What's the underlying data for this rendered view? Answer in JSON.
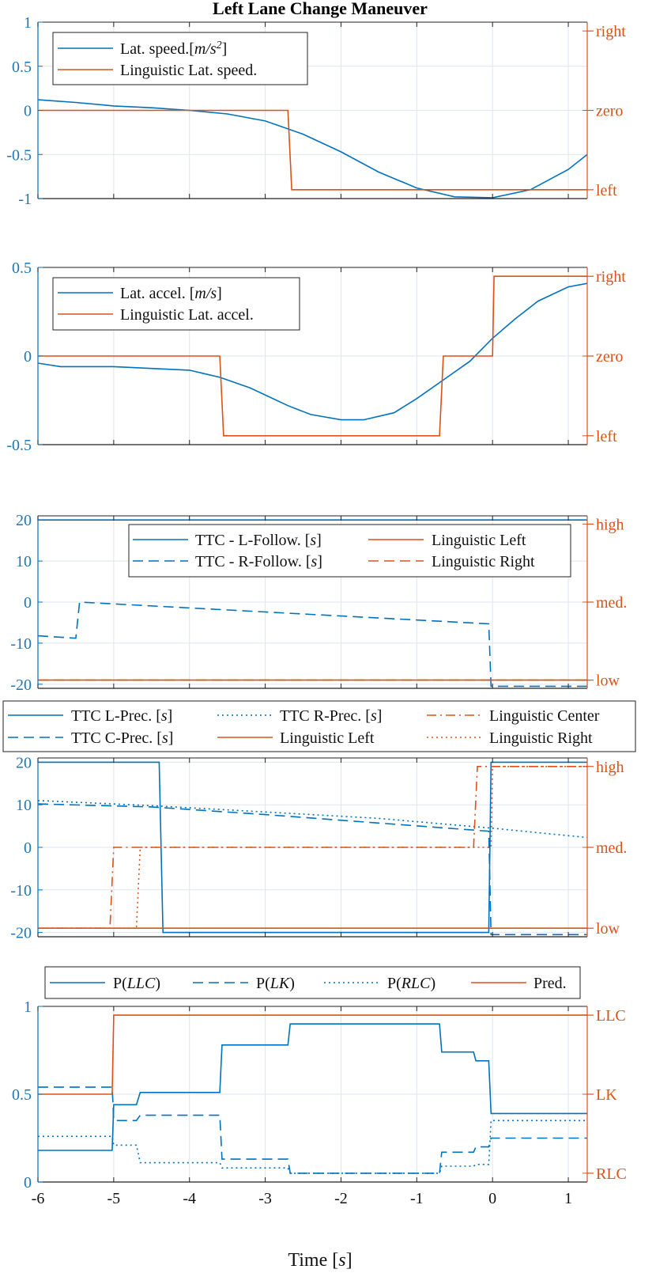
{
  "figure_title": "Left Lane Change Maneuver",
  "colors": {
    "blue": "#0072bd",
    "orange": "#d95319",
    "grid": "#dde5ee"
  },
  "chart_data": [
    {
      "type": "line",
      "title": "Left Lane Change Maneuver",
      "xlim": [
        -6,
        1.25
      ],
      "ylim": [
        -1,
        1
      ],
      "y_ticks": [
        "1",
        "0.5",
        "0",
        "-0.5",
        "-1"
      ],
      "y_tick_values": [
        1,
        0.5,
        0,
        -0.5,
        -1
      ],
      "right_ticks": [
        "right",
        "zero",
        "left"
      ],
      "right_tick_values": [
        0.9,
        0,
        -0.9
      ],
      "legend_position": "top-left",
      "series": [
        {
          "name": "Lat. speed.[m/s2]",
          "color": "blue",
          "dash": "solid",
          "x": [
            -6,
            -5.5,
            -5,
            -4.5,
            -4,
            -3.5,
            -3,
            -2.5,
            -2,
            -1.5,
            -1,
            -0.5,
            0,
            0.5,
            1,
            1.25
          ],
          "y": [
            0.12,
            0.09,
            0.05,
            0.03,
            0.0,
            -0.04,
            -0.12,
            -0.27,
            -0.47,
            -0.7,
            -0.88,
            -0.98,
            -0.99,
            -0.9,
            -0.67,
            -0.5
          ]
        },
        {
          "name": "Linguistic Lat. speed.",
          "color": "orange",
          "dash": "solid",
          "x": [
            -6,
            -2.7,
            -2.65,
            1.25
          ],
          "y": [
            0,
            0,
            -0.9,
            -0.9
          ]
        }
      ]
    },
    {
      "type": "line",
      "xlim": [
        -6,
        1.25
      ],
      "ylim": [
        -0.5,
        0.5
      ],
      "y_ticks": [
        "0.5",
        "0",
        "-0.5"
      ],
      "y_tick_values": [
        0.5,
        0,
        -0.5
      ],
      "right_ticks": [
        "right",
        "zero",
        "left"
      ],
      "right_tick_values": [
        0.45,
        0,
        -0.45
      ],
      "legend_position": "top-left",
      "series": [
        {
          "name": "Lat. accel. [m/s]",
          "color": "blue",
          "dash": "solid",
          "x": [
            -6,
            -5.7,
            -5,
            -4.5,
            -4,
            -3.6,
            -3.2,
            -2.7,
            -2.4,
            -2,
            -1.7,
            -1.3,
            -1,
            -0.6,
            -0.3,
            0,
            0.3,
            0.6,
            1,
            1.25
          ],
          "y": [
            -0.04,
            -0.06,
            -0.06,
            -0.07,
            -0.08,
            -0.12,
            -0.18,
            -0.28,
            -0.33,
            -0.36,
            -0.36,
            -0.32,
            -0.24,
            -0.12,
            -0.03,
            0.1,
            0.21,
            0.31,
            0.39,
            0.41
          ]
        },
        {
          "name": "Linguistic Lat. accel.",
          "color": "orange",
          "dash": "solid",
          "x": [
            -6,
            -3.6,
            -3.55,
            -0.7,
            -0.65,
            0,
            0.02,
            1.25
          ],
          "y": [
            0,
            0,
            -0.45,
            -0.45,
            0,
            0,
            0.45,
            0.45
          ]
        }
      ]
    },
    {
      "type": "line",
      "xlim": [
        -6,
        1.25
      ],
      "ylim": [
        -21,
        21
      ],
      "y_ticks": [
        "20",
        "10",
        "0",
        "-10",
        "-20"
      ],
      "y_tick_values": [
        20,
        10,
        0,
        -10,
        -20
      ],
      "right_ticks": [
        "high",
        "med.",
        "low"
      ],
      "right_tick_values": [
        19,
        0,
        -19
      ],
      "legend_position": "top-right",
      "series": [
        {
          "name": "TTC - L-Follow. [s]",
          "color": "blue",
          "dash": "solid",
          "x": [
            -6,
            1.25
          ],
          "y": [
            20,
            20
          ]
        },
        {
          "name": "TTC - R-Follow. [s]",
          "color": "blue",
          "dash": "dash",
          "x": [
            -6,
            -5.5,
            -5.45,
            -0.05,
            -0.02,
            1.25
          ],
          "y": [
            -8.2,
            -8.8,
            0,
            -5.3,
            -20.5,
            -20.5
          ]
        },
        {
          "name": "Linguistic Left",
          "color": "orange",
          "dash": "solid",
          "x": [
            -6,
            1.25
          ],
          "y": [
            -19,
            -19
          ]
        },
        {
          "name": "Linguistic Right",
          "color": "orange",
          "dash": "dash",
          "x": [
            -6,
            1.25
          ],
          "y": [
            -19,
            -19
          ]
        }
      ]
    },
    {
      "type": "line",
      "xlim": [
        -6,
        1.25
      ],
      "ylim": [
        -21,
        21
      ],
      "y_ticks": [
        "20",
        "10",
        "0",
        "-10",
        "-20"
      ],
      "y_tick_values": [
        20,
        10,
        0,
        -10,
        -20
      ],
      "right_ticks": [
        "high",
        "med.",
        "low"
      ],
      "right_tick_values": [
        19,
        0,
        -19
      ],
      "legend_position": "above",
      "series": [
        {
          "name": "TTC L-Prec. [s]",
          "color": "blue",
          "dash": "solid",
          "x": [
            -6,
            -4.4,
            -4.35,
            -0.05,
            -0.02,
            1.25
          ],
          "y": [
            20,
            20,
            -20,
            -20,
            20,
            20
          ]
        },
        {
          "name": "TTC R-Prec. [s]",
          "color": "blue",
          "dash": "dot",
          "x": [
            -6,
            -4.5,
            -3,
            -1.5,
            0,
            1.25
          ],
          "y": [
            11,
            9.8,
            8.3,
            6.8,
            4.5,
            2.3
          ]
        },
        {
          "name": "Linguistic Center",
          "color": "orange",
          "dash": "dashdot",
          "x": [
            -6,
            -5.05,
            -5.0,
            -0.25,
            -0.2,
            1.25
          ],
          "y": [
            -19,
            -19,
            0,
            0,
            19,
            19
          ]
        },
        {
          "name": "TTC C-Prec. [s]",
          "color": "blue",
          "dash": "dash",
          "x": [
            -6,
            -4.5,
            -3,
            -1.5,
            -0.05,
            -0.02,
            1.25
          ],
          "y": [
            10.2,
            9.5,
            7.7,
            5.7,
            3.8,
            -20.5,
            -20.5
          ]
        },
        {
          "name": "Linguistic Left",
          "color": "orange",
          "dash": "solid",
          "x": [
            -6,
            1.25
          ],
          "y": [
            -19,
            -19
          ]
        },
        {
          "name": "Linguistic Right",
          "color": "orange",
          "dash": "dot",
          "x": [
            -6,
            -4.7,
            -4.65,
            -0.02,
            0.0,
            1.25
          ],
          "y": [
            -19,
            -19,
            0,
            0,
            19,
            19
          ]
        }
      ]
    },
    {
      "type": "line",
      "xlim": [
        -6,
        1.25
      ],
      "ylim": [
        0,
        1
      ],
      "y_ticks": [
        "1",
        "0.5",
        "0"
      ],
      "y_tick_values": [
        1,
        0.5,
        0
      ],
      "right_ticks": [
        "LLC",
        "LK",
        "RLC"
      ],
      "right_tick_values": [
        0.95,
        0.5,
        0.05
      ],
      "x_ticks": [
        "-6",
        "-5",
        "-4",
        "-3",
        "-2",
        "-1",
        "0",
        "1"
      ],
      "x_tick_values": [
        -6,
        -5,
        -4,
        -3,
        -2,
        -1,
        0,
        1
      ],
      "xlabel": "Time [s]",
      "legend_position": "above",
      "series": [
        {
          "name": "P(LLC)",
          "color": "blue",
          "dash": "solid",
          "x": [
            -6,
            -5.02,
            -5.0,
            -4.7,
            -4.65,
            -3.6,
            -3.57,
            -2.7,
            -2.67,
            -0.7,
            -0.67,
            -0.25,
            -0.22,
            -0.05,
            -0.02,
            1.25
          ],
          "y": [
            0.18,
            0.18,
            0.44,
            0.44,
            0.51,
            0.51,
            0.78,
            0.78,
            0.9,
            0.9,
            0.74,
            0.74,
            0.69,
            0.69,
            0.39,
            0.39
          ]
        },
        {
          "name": "P(LK)",
          "color": "blue",
          "dash": "dash",
          "x": [
            -6,
            -5.02,
            -5.0,
            -4.7,
            -4.65,
            -3.6,
            -3.57,
            -2.7,
            -2.67,
            -0.7,
            -0.67,
            -0.25,
            -0.22,
            -0.05,
            -0.02,
            1.25
          ],
          "y": [
            0.54,
            0.54,
            0.35,
            0.35,
            0.38,
            0.38,
            0.13,
            0.13,
            0.05,
            0.05,
            0.17,
            0.17,
            0.2,
            0.2,
            0.25,
            0.25
          ]
        },
        {
          "name": "P(RLC)",
          "color": "blue",
          "dash": "dot",
          "x": [
            -6,
            -5.02,
            -5.0,
            -4.7,
            -4.65,
            -3.6,
            -3.57,
            -2.7,
            -2.67,
            -0.7,
            -0.67,
            -0.25,
            -0.22,
            -0.05,
            -0.02,
            1.25
          ],
          "y": [
            0.26,
            0.26,
            0.21,
            0.21,
            0.11,
            0.11,
            0.08,
            0.08,
            0.05,
            0.05,
            0.09,
            0.09,
            0.1,
            0.1,
            0.35,
            0.35
          ]
        },
        {
          "name": "Pred.",
          "color": "orange",
          "dash": "solid",
          "x": [
            -6,
            -5.02,
            -5.0,
            1.25
          ],
          "y": [
            0.5,
            0.5,
            0.95,
            0.95
          ]
        }
      ]
    }
  ],
  "legends": {
    "p1": [
      "Lat. speed.[",
      "m/s",
      "2",
      "]",
      "Linguistic Lat. speed."
    ],
    "p2": [
      "Lat. accel. [",
      "m/s",
      "]",
      "Linguistic Lat. accel."
    ],
    "p3": [
      "TTC - L-Follow. [",
      "s",
      "]",
      "TTC - R-Follow. [",
      "s",
      "]",
      "Linguistic Left",
      "Linguistic Right"
    ],
    "p4": [
      "TTC L-Prec. [",
      "s",
      "]",
      "TTC R-Prec. [",
      "s",
      "]",
      "Linguistic Center",
      "TTC C-Prec. [",
      "s",
      "]",
      "Linguistic Left",
      "Linguistic Right"
    ],
    "p5": [
      "P(",
      "LLC",
      ")",
      "P(",
      "LK",
      ")",
      "P(",
      "RLC",
      ")",
      "Pred."
    ]
  },
  "xlabel_parts": [
    "Time [",
    "s",
    "]"
  ]
}
